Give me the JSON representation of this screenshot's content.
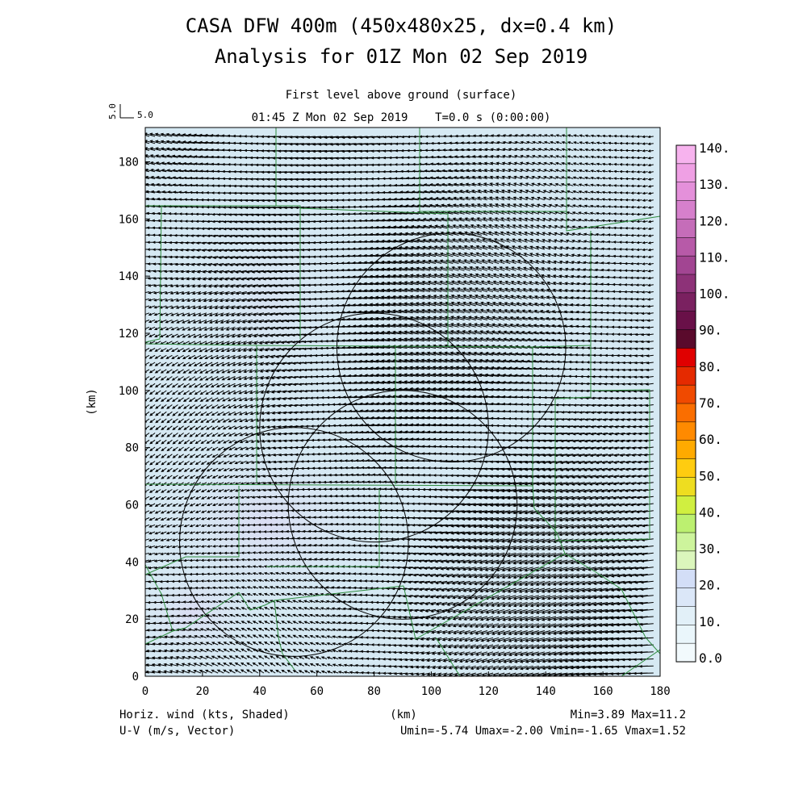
{
  "header": {
    "title_line1": "CASA DFW 400m (450x480x25, dx=0.4 km)",
    "title_line2": "Analysis for 01Z Mon 02 Sep 2019",
    "level": "First level above ground (surface)",
    "time": "01:45 Z Mon 02 Sep 2019    T=0.0 s (0:00:00)",
    "ref_vector_label": "5.0",
    "ref_vector_side": "5.0"
  },
  "footer": {
    "left1": "Horiz. wind (kts, Shaded)",
    "left2": "U-V (m/s, Vector)",
    "center": "(km)",
    "right1": "Min=3.89 Max=11.2",
    "right2": "Umin=-5.74 Umax=-2.00 Vmin=-1.65 Vmax=1.52"
  },
  "colors": {
    "background_field": "#d6e9f3",
    "boundary": "#2e8b3e",
    "circle": "#000000",
    "vector": "#000000"
  },
  "chart_data": {
    "type": "heatmap",
    "subtype": "wind vector field over shaded wind speed",
    "xlabel": "(km)",
    "ylabel": "(km)",
    "xlim": [
      0,
      180
    ],
    "ylim": [
      0,
      192
    ],
    "xticks": [
      "0",
      "20",
      "40",
      "60",
      "80",
      "100",
      "120",
      "140",
      "160",
      "180"
    ],
    "yticks": [
      "0",
      "20",
      "40",
      "60",
      "80",
      "100",
      "120",
      "140",
      "160",
      "180"
    ],
    "wind_field": {
      "u_min": -5.74,
      "u_max": -2.0,
      "v_min": -1.65,
      "v_max": 1.52,
      "speed_min": 3.89,
      "speed_max": 11.2
    },
    "radar_circles": [
      {
        "cx": 107,
        "cy": 115,
        "r": 40
      },
      {
        "cx": 80,
        "cy": 87,
        "r": 40
      },
      {
        "cx": 52,
        "cy": 47,
        "r": 40
      },
      {
        "cx": 90,
        "cy": 60,
        "r": 40
      }
    ],
    "colorbar": {
      "labels": [
        "140.",
        "130.",
        "120.",
        "110.",
        "100.",
        "90.",
        "80.",
        "70.",
        "60.",
        "50.",
        "40.",
        "30.",
        "20.",
        "10.",
        "0.0"
      ],
      "colors": [
        "#f7b3ee",
        "#efa0e4",
        "#e490da",
        "#d680cc",
        "#c56db9",
        "#b75aa8",
        "#a24592",
        "#8d3278",
        "#7a2160",
        "#691048",
        "#5a0a2c",
        "#e00000",
        "#e52a00",
        "#f04a00",
        "#fa6e00",
        "#ff8a00",
        "#ffaa00",
        "#ffcc10",
        "#eedd20",
        "#d0ef40",
        "#bcf070",
        "#cdf49c",
        "#dbf6bc",
        "#d3def7",
        "#dbe7f8",
        "#e2f0f8",
        "#eaf6fb",
        "#f2fafd"
      ]
    }
  }
}
